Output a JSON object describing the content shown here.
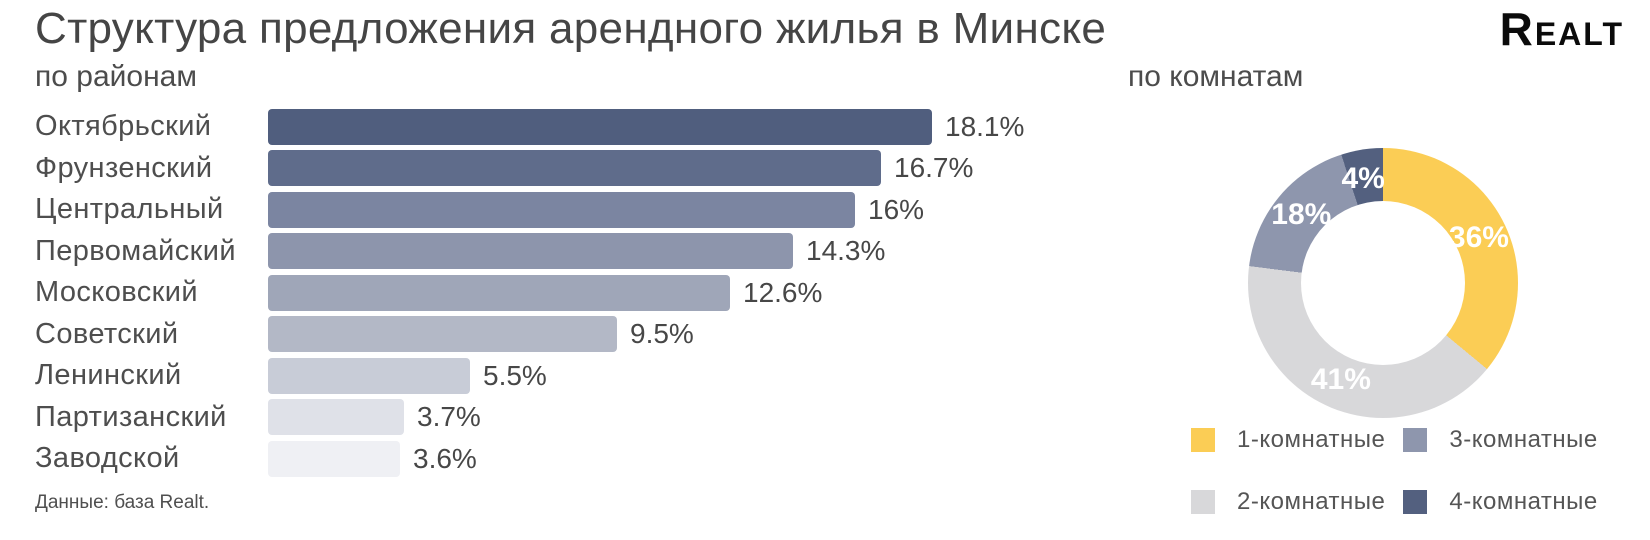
{
  "header": {
    "title": "Структура предложения арендного жилья в Минске",
    "logo": "Realt"
  },
  "footer": {
    "source": "Данные: база Realt."
  },
  "chart_data": [
    {
      "type": "bar",
      "orientation": "horizontal",
      "title": "по районам",
      "categories": [
        "Октябрьский",
        "Фрунзенский",
        "Центральный",
        "Первомайский",
        "Московский",
        "Советский",
        "Ленинский",
        "Партизанский",
        "Заводской"
      ],
      "values": [
        18.1,
        16.7,
        16,
        14.3,
        12.6,
        9.5,
        5.5,
        3.7,
        3.6
      ],
      "value_labels": [
        "18.1%",
        "16.7%",
        "16%",
        "14.3%",
        "12.6%",
        "9.5%",
        "5.5%",
        "3.7%",
        "3.6%"
      ],
      "bar_colors": [
        "#505e7e",
        "#5f6c8b",
        "#7b85a1",
        "#8d95ac",
        "#9fa6b8",
        "#b3b8c6",
        "#c8ccd7",
        "#dfe1e8",
        "#eff0f4"
      ],
      "unit": "%",
      "xlim": [
        0,
        20
      ],
      "grid": false,
      "value_label_position": "end-of-bar"
    },
    {
      "type": "pie",
      "subtype": "donut",
      "title": "по комнатам",
      "labels": [
        "1-комнатные",
        "2-комнатные",
        "3-комнатные",
        "4-комнатные"
      ],
      "values": [
        36,
        41,
        18,
        4
      ],
      "slice_labels": [
        "36%",
        "41%",
        "18%",
        "4%"
      ],
      "colors": [
        "#fbcd55",
        "#d8d8da",
        "#8e96ad",
        "#53607f"
      ],
      "start_angle_deg": 0,
      "direction": "clockwise",
      "legend_position": "bottom"
    }
  ]
}
